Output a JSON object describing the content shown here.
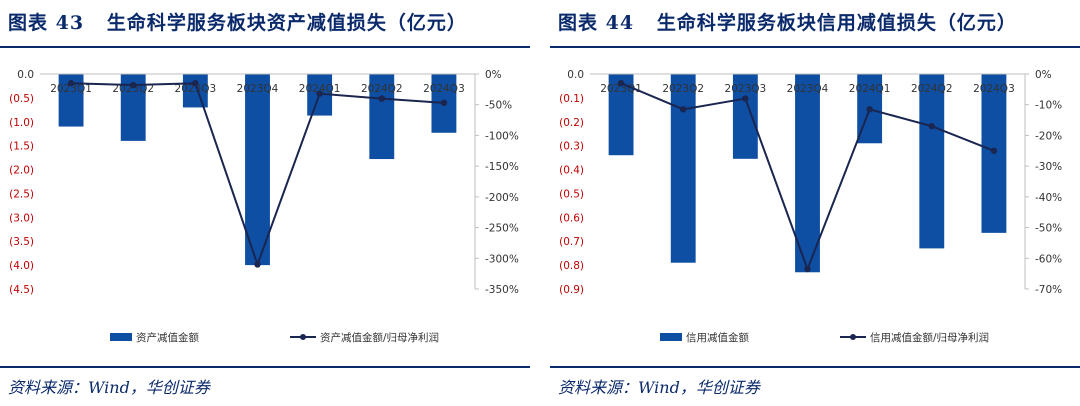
{
  "charts": [
    {
      "figure_label": "图表 43",
      "figure_title": "生命科学服务板块资产减值损失（亿元）",
      "source": "资料来源：Wind，华创证券"
    },
    {
      "figure_label": "图表 44",
      "figure_title": "生命科学服务板块信用减值损失（亿元）",
      "source": "资料来源：Wind，华创证券"
    }
  ],
  "colors": {
    "bar": "#0e4ea3",
    "line": "#1a2550",
    "left_axis_text": "#c00000",
    "text": "#333333",
    "title": "#0b2a6b"
  },
  "chart_data": [
    {
      "type": "bar",
      "categories": [
        "2023Q1",
        "2023Q2",
        "2023Q3",
        "2023Q4",
        "2024Q1",
        "2024Q2",
        "2024Q3"
      ],
      "series": [
        {
          "name": "资产减值金额",
          "type": "bar",
          "axis": "left",
          "values": [
            -1.1,
            -1.4,
            -0.7,
            -4.0,
            -0.87,
            -1.78,
            -1.23
          ]
        },
        {
          "name": "资产减值金额/归母净利润",
          "type": "line",
          "axis": "right",
          "values": [
            -15,
            -18,
            -15,
            -310,
            -32,
            -40,
            -47
          ]
        }
      ],
      "y_left": {
        "ylim": [
          -4.5,
          0.0
        ],
        "ticks": [
          "0.0",
          "(0.5)",
          "(1.0)",
          "(1.5)",
          "(2.0)",
          "(2.5)",
          "(3.0)",
          "(3.5)",
          "(4.0)",
          "(4.5)"
        ]
      },
      "y_right": {
        "ylim": [
          -350,
          0
        ],
        "ticks": [
          "0%",
          "-50%",
          "-100%",
          "-150%",
          "-200%",
          "-250%",
          "-300%",
          "-350%"
        ]
      },
      "legend": "bottom"
    },
    {
      "type": "bar",
      "categories": [
        "2023Q1",
        "2023Q2",
        "2023Q3",
        "2023Q4",
        "2024Q1",
        "2024Q2",
        "2024Q3"
      ],
      "series": [
        {
          "name": "信用减值金额",
          "type": "bar",
          "axis": "left",
          "values": [
            -0.34,
            -0.79,
            -0.355,
            -0.83,
            -0.29,
            -0.73,
            -0.665
          ]
        },
        {
          "name": "信用减值金额/归母净利润",
          "type": "line",
          "axis": "right",
          "values": [
            -3,
            -11.5,
            -8,
            -63.5,
            -11.5,
            -17,
            -25
          ]
        }
      ],
      "y_left": {
        "ylim": [
          -0.9,
          0.0
        ],
        "ticks": [
          "0.0",
          "(0.1)",
          "(0.2)",
          "(0.3)",
          "(0.4)",
          "(0.5)",
          "(0.6)",
          "(0.7)",
          "(0.8)",
          "(0.9)"
        ]
      },
      "y_right": {
        "ylim": [
          -70,
          0
        ],
        "ticks": [
          "0%",
          "-10%",
          "-20%",
          "-30%",
          "-40%",
          "-50%",
          "-60%",
          "-70%"
        ]
      },
      "legend": "bottom"
    }
  ]
}
